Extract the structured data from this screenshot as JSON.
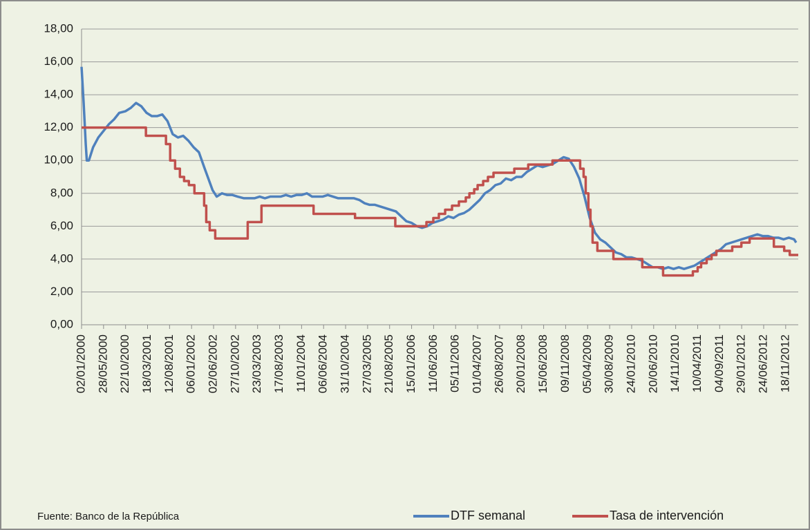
{
  "chart_data": {
    "type": "line",
    "source": "Fuente: Banco de la República",
    "xlim": [
      "02/01/2000",
      "10/02/2013"
    ],
    "xticks": [
      "02/01/2000",
      "28/05/2000",
      "22/10/2000",
      "18/03/2001",
      "12/08/2001",
      "06/01/2002",
      "02/06/2002",
      "27/10/2002",
      "23/03/2003",
      "17/08/2003",
      "11/01/2004",
      "06/06/2004",
      "31/10/2004",
      "27/03/2005",
      "21/08/2005",
      "15/01/2006",
      "11/06/2006",
      "05/11/2006",
      "01/04/2007",
      "26/08/2007",
      "20/01/2008",
      "15/06/2008",
      "09/11/2008",
      "05/04/2009",
      "30/08/2009",
      "24/01/2010",
      "20/06/2010",
      "14/11/2010",
      "10/04/2011",
      "04/09/2011",
      "29/01/2012",
      "24/06/2012",
      "18/11/2012"
    ],
    "ylim": [
      0,
      18
    ],
    "yticks": [
      {
        "value": 0,
        "label": "0,00"
      },
      {
        "value": 2,
        "label": "2,00"
      },
      {
        "value": 4,
        "label": "4,00"
      },
      {
        "value": 6,
        "label": "6,00"
      },
      {
        "value": 8,
        "label": "8,00"
      },
      {
        "value": 10,
        "label": "10,00"
      },
      {
        "value": 12,
        "label": "12,00"
      },
      {
        "value": 14,
        "label": "14,00"
      },
      {
        "value": 16,
        "label": "16,00"
      },
      {
        "value": 18,
        "label": "18,00"
      }
    ],
    "grid": true,
    "legend": "bottom-right",
    "series": [
      {
        "name": "DTF semanal",
        "color": "#4f81bd",
        "drawstyle": "default",
        "x": [
          "02/01/2000",
          "16/01/2000",
          "30/01/2000",
          "06/02/2000",
          "20/02/2000",
          "19/03/2000",
          "23/04/2000",
          "28/05/2000",
          "02/07/2000",
          "06/08/2000",
          "10/09/2000",
          "22/10/2000",
          "26/11/2000",
          "31/12/2000",
          "04/02/2001",
          "11/03/2001",
          "15/04/2001",
          "20/05/2001",
          "24/06/2001",
          "29/07/2001",
          "02/09/2001",
          "07/10/2001",
          "11/11/2001",
          "16/12/2001",
          "20/01/2002",
          "24/02/2002",
          "31/03/2002",
          "28/04/2002",
          "26/05/2002",
          "23/06/2002",
          "28/07/2002",
          "01/09/2002",
          "06/10/2002",
          "10/11/2002",
          "22/12/2002",
          "02/03/2003",
          "06/04/2003",
          "11/05/2003",
          "15/06/2003",
          "20/07/2003",
          "24/08/2003",
          "28/09/2003",
          "02/11/2003",
          "07/12/2003",
          "11/01/2004",
          "15/02/2004",
          "21/03/2004",
          "25/04/2004",
          "30/05/2004",
          "04/07/2004",
          "08/08/2004",
          "12/09/2004",
          "17/10/2004",
          "21/11/2004",
          "26/12/2004",
          "30/01/2005",
          "06/03/2005",
          "10/04/2005",
          "15/05/2005",
          "19/06/2005",
          "24/07/2005",
          "28/08/2005",
          "02/10/2005",
          "06/11/2005",
          "11/12/2005",
          "15/01/2006",
          "19/02/2006",
          "26/03/2006",
          "30/04/2006",
          "04/06/2006",
          "09/07/2006",
          "13/08/2006",
          "17/09/2006",
          "22/10/2006",
          "26/11/2006",
          "31/12/2006",
          "04/02/2007",
          "11/03/2007",
          "15/04/2007",
          "20/05/2007",
          "24/06/2007",
          "29/07/2007",
          "02/09/2007",
          "07/10/2007",
          "11/11/2007",
          "16/12/2007",
          "20/01/2008",
          "24/02/2008",
          "30/03/2008",
          "04/05/2008",
          "08/06/2008",
          "13/07/2008",
          "17/08/2008",
          "21/09/2008",
          "26/10/2008",
          "30/11/2008",
          "04/01/2009",
          "08/02/2009",
          "15/03/2009",
          "19/04/2009",
          "24/05/2009",
          "28/06/2009",
          "02/08/2009",
          "06/09/2009",
          "11/10/2009",
          "15/11/2009",
          "20/12/2009",
          "24/01/2010",
          "28/02/2010",
          "04/04/2010",
          "09/05/2010",
          "13/06/2010",
          "18/07/2010",
          "22/08/2010",
          "26/09/2010",
          "31/10/2010",
          "05/12/2010",
          "09/01/2011",
          "13/02/2011",
          "20/03/2011",
          "24/04/2011",
          "29/05/2011",
          "03/07/2011",
          "07/08/2011",
          "11/09/2011",
          "16/10/2011",
          "20/11/2011",
          "25/12/2011",
          "29/01/2012",
          "04/03/2012",
          "08/04/2012",
          "13/05/2012",
          "17/06/2012",
          "22/07/2012",
          "26/08/2012",
          "30/09/2012",
          "04/11/2012",
          "09/12/2012",
          "13/01/2013",
          "27/01/2013"
        ],
        "values": [
          15.7,
          13.5,
          11.0,
          10.0,
          10.0,
          10.8,
          11.4,
          11.8,
          12.2,
          12.5,
          12.9,
          13.0,
          13.2,
          13.5,
          13.3,
          12.9,
          12.7,
          12.7,
          12.8,
          12.4,
          11.6,
          11.4,
          11.5,
          11.2,
          10.8,
          10.5,
          9.6,
          8.9,
          8.2,
          7.8,
          8.0,
          7.9,
          7.9,
          7.8,
          7.7,
          7.7,
          7.8,
          7.7,
          7.8,
          7.8,
          7.8,
          7.9,
          7.8,
          7.9,
          7.9,
          8.0,
          7.8,
          7.8,
          7.8,
          7.9,
          7.8,
          7.7,
          7.7,
          7.7,
          7.7,
          7.6,
          7.4,
          7.3,
          7.3,
          7.2,
          7.1,
          7.0,
          6.9,
          6.6,
          6.3,
          6.2,
          6.0,
          5.9,
          6.0,
          6.2,
          6.3,
          6.4,
          6.6,
          6.5,
          6.7,
          6.8,
          7.0,
          7.3,
          7.6,
          8.0,
          8.2,
          8.5,
          8.6,
          8.9,
          8.8,
          9.0,
          9.0,
          9.3,
          9.5,
          9.7,
          9.6,
          9.7,
          9.8,
          10.0,
          10.2,
          10.1,
          9.6,
          8.9,
          7.8,
          6.5,
          5.6,
          5.2,
          5.0,
          4.7,
          4.4,
          4.3,
          4.1,
          4.1,
          4.0,
          3.9,
          3.7,
          3.5,
          3.5,
          3.4,
          3.5,
          3.4,
          3.5,
          3.4,
          3.5,
          3.6,
          3.8,
          4.0,
          4.2,
          4.4,
          4.6,
          4.9,
          5.0,
          5.1,
          5.2,
          5.3,
          5.4,
          5.5,
          5.4,
          5.4,
          5.3,
          5.3,
          5.2,
          5.3,
          5.2,
          5.0
        ]
      },
      {
        "name": "Tasa de intervención",
        "color": "#c0504d",
        "drawstyle": "steps-post",
        "x": [
          "02/01/2000",
          "07/03/2001",
          "19/07/2001",
          "16/08/2001",
          "18/09/2001",
          "20/10/2001",
          "17/11/2001",
          "19/12/2001",
          "25/01/2002",
          "31/03/2002",
          "14/04/2002",
          "07/05/2002",
          "13/06/2002",
          "16/01/2003",
          "18/04/2003",
          "31/03/2004",
          "02/01/2005",
          "28/09/2005",
          "24/04/2006",
          "09/06/2006",
          "16/07/2006",
          "27/08/2006",
          "12/10/2006",
          "27/11/2006",
          "12/01/2007",
          "05/02/2007",
          "09/03/2007",
          "01/04/2007",
          "08/05/2007",
          "09/06/2007",
          "16/07/2007",
          "02/12/2007",
          "04/03/2008",
          "13/08/2008",
          "14/02/2009",
          "09/03/2009",
          "23/03/2009",
          "10/04/2009",
          "24/04/2009",
          "08/05/2009",
          "09/06/2009",
          "24/09/2009",
          "05/04/2010",
          "22/08/2010",
          "09/03/2011",
          "10/04/2011",
          "03/05/2011",
          "09/06/2011",
          "12/07/2011",
          "13/08/2011",
          "27/11/2011",
          "27/01/2012",
          "22/03/2012",
          "31/08/2012",
          "08/11/2012",
          "15/12/2012",
          "10/02/2013"
        ],
        "values": [
          12.0,
          11.5,
          11.0,
          10.0,
          9.5,
          9.0,
          8.75,
          8.5,
          8.0,
          7.25,
          6.25,
          5.75,
          5.25,
          6.25,
          7.25,
          6.75,
          6.5,
          6.0,
          6.25,
          6.5,
          6.75,
          7.0,
          7.25,
          7.5,
          7.75,
          8.0,
          8.25,
          8.5,
          8.75,
          9.0,
          9.25,
          9.5,
          9.75,
          10.0,
          9.5,
          9.0,
          8.0,
          7.0,
          6.0,
          5.0,
          4.5,
          4.0,
          3.5,
          3.0,
          3.25,
          3.5,
          3.75,
          4.0,
          4.25,
          4.5,
          4.75,
          5.0,
          5.25,
          4.75,
          4.5,
          4.25,
          4.25
        ]
      }
    ]
  }
}
